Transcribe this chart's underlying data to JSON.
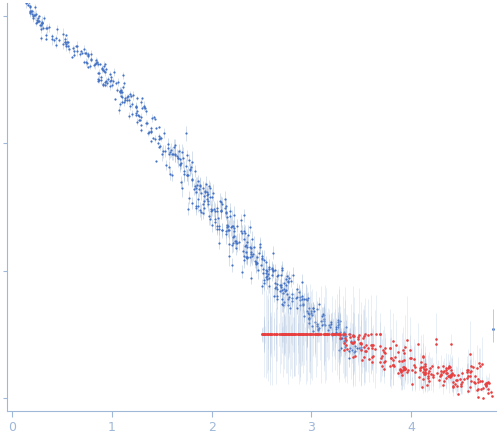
{
  "title": "",
  "xlabel": "",
  "ylabel": "",
  "xlim": [
    -0.05,
    4.85
  ],
  "ymin": -0.05,
  "ymax": 1.55,
  "bg_color": "#ffffff",
  "spine_color": "#a0b8d8",
  "tick_color": "#a0b8d8",
  "label_color": "#a0b8d8",
  "blue_dot_color": "#4472c4",
  "blue_err_color": "#a0b8d8",
  "red_dot_color": "#e84040",
  "xticks": [
    0,
    1,
    2,
    3,
    4
  ],
  "yticks": []
}
